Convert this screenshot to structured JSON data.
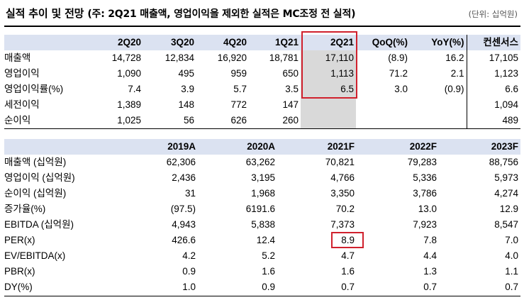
{
  "title": {
    "main": "실적 추이 및 전망",
    "sub": "(주: 2Q21 매출액, 영업이익을 제외한 실적은 MC조정 전 실적)",
    "unit": "(단위: 십억원)"
  },
  "quarterly": {
    "headers": [
      "",
      "2Q20",
      "3Q20",
      "4Q20",
      "1Q21",
      "2Q21",
      "QoQ(%)",
      "YoY(%)",
      "컨센서스"
    ],
    "rows": [
      [
        "매출액",
        "14,728",
        "12,834",
        "16,920",
        "18,781",
        "17,110",
        "(8.9)",
        "16.2",
        "17,105"
      ],
      [
        "영업이익",
        "1,090",
        "495",
        "959",
        "650",
        "1,113",
        "71.2",
        "2.1",
        "1,123"
      ],
      [
        "영업이익률(%)",
        "7.4",
        "3.9",
        "5.7",
        "3.5",
        "6.5",
        "3.0",
        "(0.9)",
        "6.6"
      ],
      [
        "세전이익",
        "1,389",
        "148",
        "772",
        "147",
        "",
        "",
        "",
        "1,094"
      ],
      [
        "순이익",
        "1,025",
        "56",
        "626",
        "260",
        "",
        "",
        "",
        "489"
      ]
    ]
  },
  "annual": {
    "headers": [
      "",
      "2019A",
      "2020A",
      "2021F",
      "2022F",
      "2023F"
    ],
    "rows": [
      [
        "매출액 (십억원)",
        "62,306",
        "63,262",
        "70,821",
        "79,283",
        "88,756"
      ],
      [
        "영업이익 (십억원)",
        "2,436",
        "3,195",
        "4,766",
        "5,336",
        "5,973"
      ],
      [
        "순이익 (십억원)",
        "31",
        "1,968",
        "3,350",
        "3,786",
        "4,274"
      ],
      [
        "증가율(%)",
        "(97.5)",
        "6191.6",
        "70.2",
        "13.0",
        "12.9"
      ],
      [
        "EBITDA (십억원)",
        "4,943",
        "5,838",
        "7,373",
        "7,923",
        "8,547"
      ],
      [
        "PER(x)",
        "426.6",
        "12.4",
        "8.9",
        "7.8",
        "7.0"
      ],
      [
        "EV/EBITDA(x)",
        "4.2",
        "5.2",
        "4.7",
        "4.4",
        "4.0"
      ],
      [
        "PBR(x)",
        "0.9",
        "1.6",
        "1.6",
        "1.3",
        "1.1"
      ],
      [
        "DY(%)",
        "1.0",
        "0.9",
        "0.7",
        "0.7",
        "0.7"
      ]
    ]
  },
  "colors": {
    "header_bg": "#dbe2f1",
    "highlight_box": "#d0212d",
    "shade": "#d9d9d9"
  }
}
